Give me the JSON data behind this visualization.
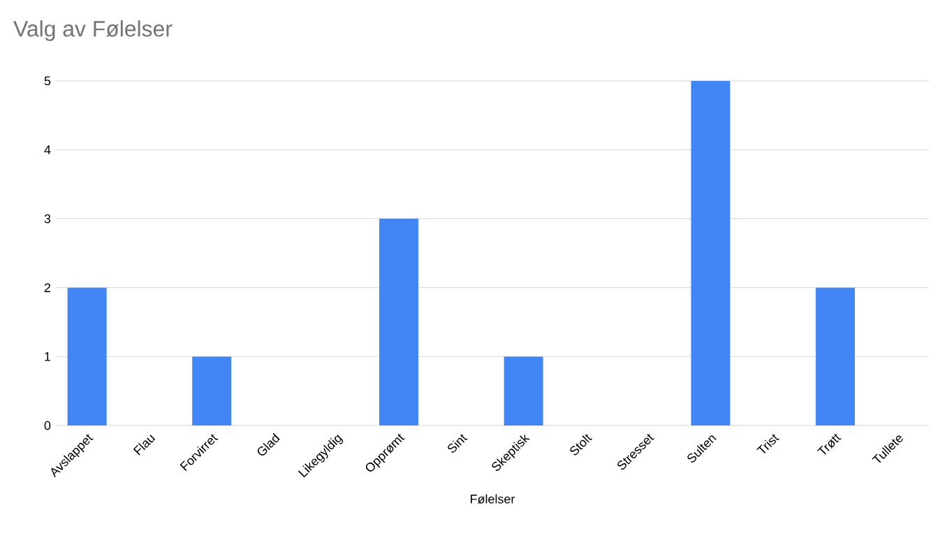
{
  "chart_data": {
    "type": "bar",
    "title": "Valg av Følelser",
    "xlabel": "Følelser",
    "categories": [
      "Avslappet",
      "Flau",
      "Forvirret",
      "Glad",
      "Likegyldig",
      "Opprømt",
      "Sint",
      "Skeptisk",
      "Stolt",
      "Stresset",
      "Sulten",
      "Trist",
      "Trøtt",
      "Tullete"
    ],
    "values": [
      2,
      0,
      1,
      0,
      0,
      3,
      0,
      1,
      0,
      0,
      5,
      0,
      2,
      0
    ],
    "color": "#4285f4",
    "ylim": [
      0,
      5
    ],
    "yticks": [
      0,
      1,
      2,
      3,
      4,
      5
    ],
    "grid": "y"
  }
}
